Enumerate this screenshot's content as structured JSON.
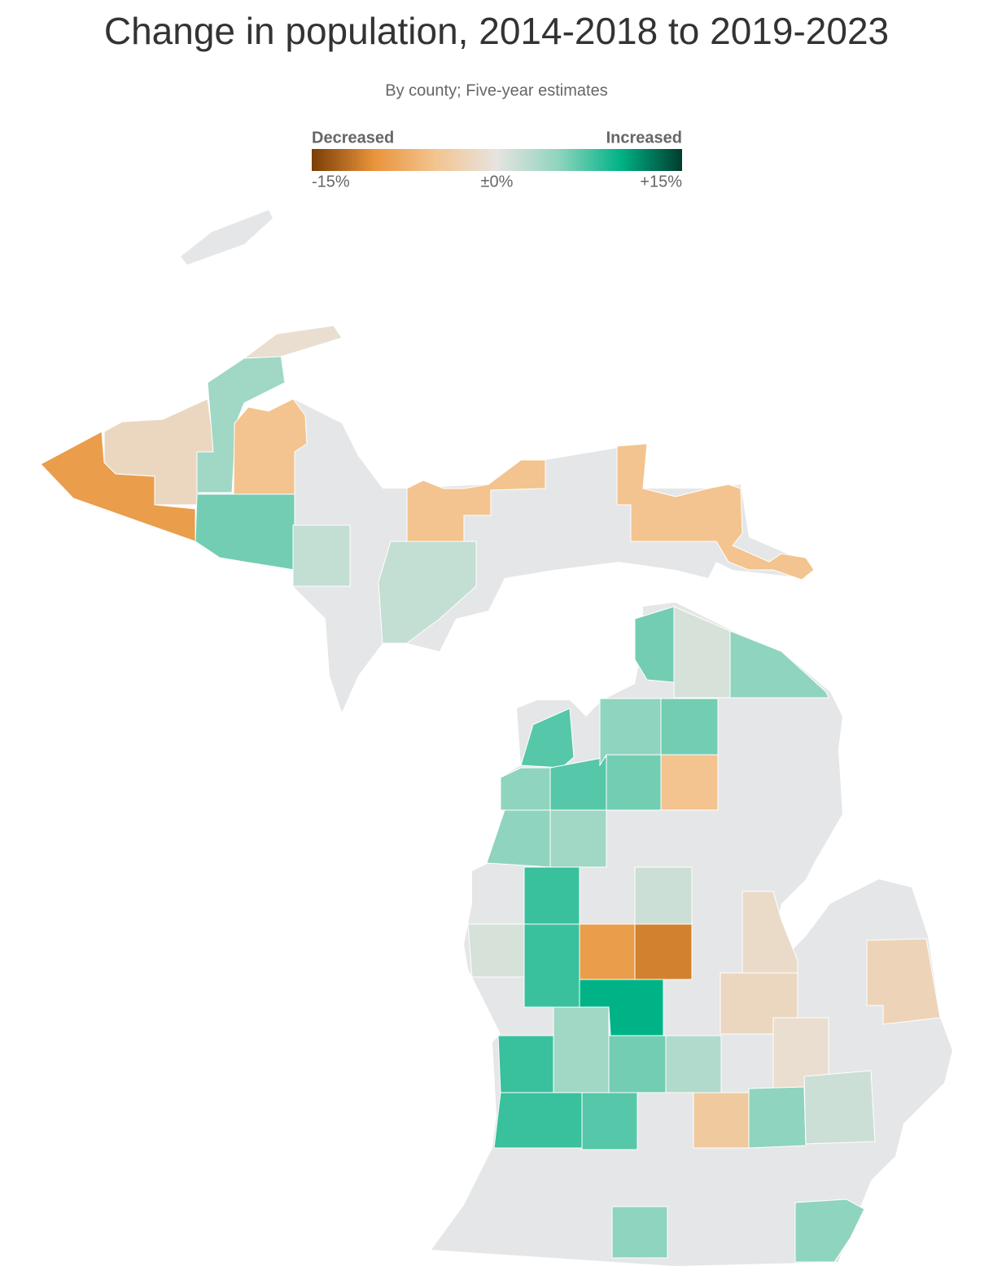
{
  "chart_data": {
    "type": "choropleth",
    "title": "Change in population, 2014-2018 to 2019-2023",
    "subtitle": "By county; Five-year estimates",
    "legend": {
      "low_label": "Decreased",
      "high_label": "Increased",
      "clim": [
        -15,
        15
      ],
      "ticks": [
        {
          "value": -15,
          "label": "-15%"
        },
        {
          "value": 0,
          "label": "±0%"
        },
        {
          "value": 15,
          "label": "+15%"
        }
      ],
      "colors": [
        "#7a3d05",
        "#e8933a",
        "#f3c48f",
        "#e6e4e0",
        "#8fd4be",
        "#00b386",
        "#003d2e"
      ]
    },
    "land_color": "#e5e6e7",
    "values": [
      -9,
      -2,
      4,
      -1,
      -5,
      6,
      2,
      2,
      -5,
      -5,
      6,
      1,
      5,
      7,
      7,
      5,
      6,
      6,
      -5,
      5,
      5,
      4,
      8,
      1.5,
      1,
      8,
      -9,
      -11,
      10,
      -1.5,
      -2,
      -2.5,
      -1,
      8,
      4,
      6,
      3,
      8,
      7,
      -4,
      5,
      1.5,
      5,
      5
    ]
  }
}
